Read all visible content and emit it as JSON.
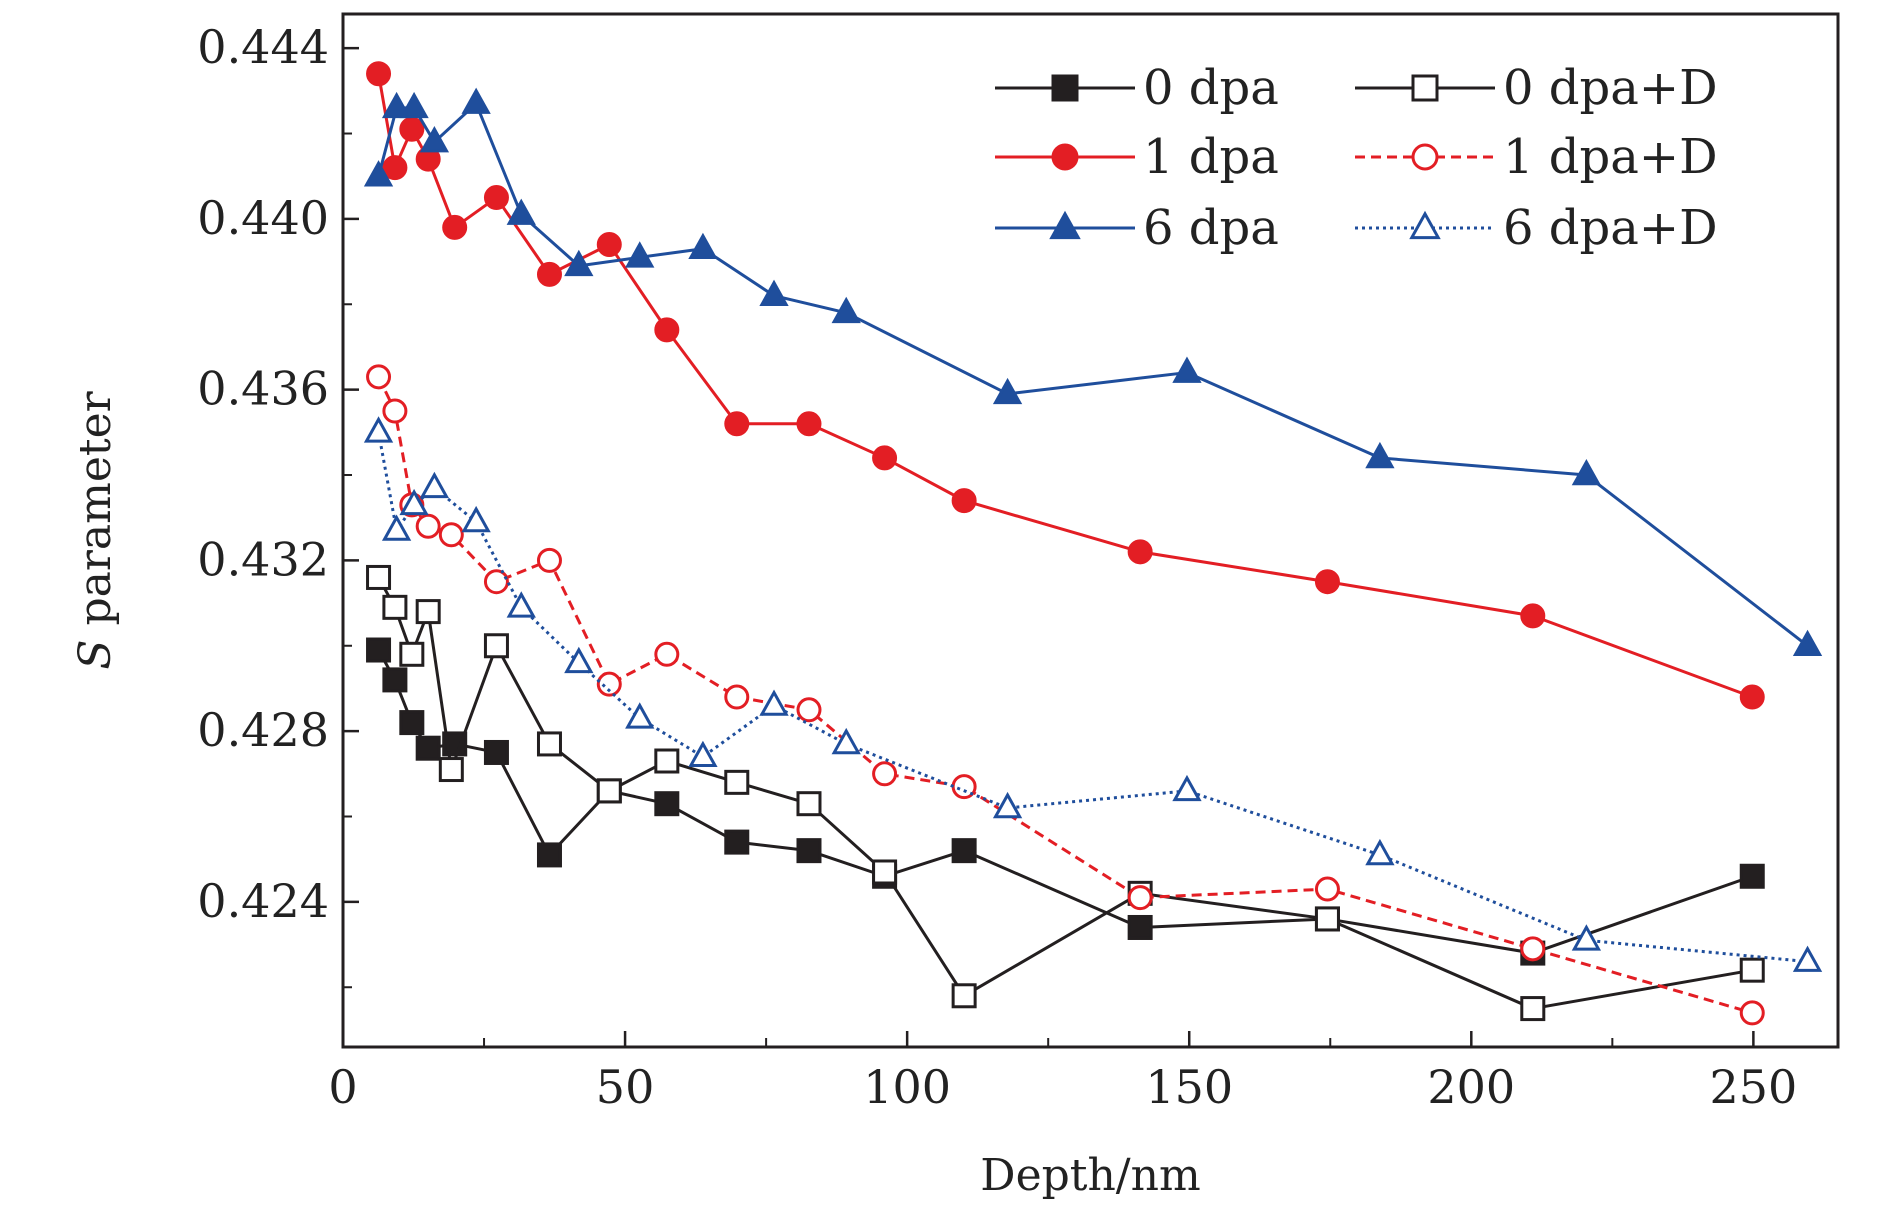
{
  "chart_data": {
    "type": "line",
    "title": "",
    "xlabel": "Depth/nm",
    "ylabel_italic": "S",
    "ylabel_rest": " parameter",
    "xlim": [
      0,
      265
    ],
    "ylim": [
      0.4206,
      0.4448
    ],
    "xticks": [
      0,
      50,
      100,
      150,
      200,
      250
    ],
    "xtick_labels": [
      "0",
      "50",
      "100",
      "150",
      "200",
      "250"
    ],
    "xminor": [
      25,
      75,
      125,
      175,
      225
    ],
    "yticks": [
      0.424,
      0.428,
      0.432,
      0.436,
      0.44,
      0.444
    ],
    "ytick_labels": [
      "0.424",
      "0.428",
      "0.432",
      "0.436",
      "0.440",
      "0.444"
    ],
    "yminor": [
      0.422,
      0.426,
      0.43,
      0.434,
      0.438,
      0.442
    ],
    "legend_position": "top-right",
    "series": [
      {
        "name": "0 dpa",
        "color": "#231f20",
        "marker": "square",
        "filled": true,
        "dash": "solid",
        "x": [
          6.3,
          9.2,
          12.2,
          15.1,
          19.8,
          27.2,
          36.6,
          47.2,
          57.4,
          69.8,
          82.6,
          96.0,
          110.1,
          141.3,
          174.5,
          210.9,
          249.8
        ],
        "y": [
          0.4299,
          0.4292,
          0.4282,
          0.4276,
          0.4277,
          0.4275,
          0.4251,
          0.4266,
          0.4263,
          0.4254,
          0.4252,
          0.4246,
          0.4252,
          0.4234,
          0.4236,
          0.4228,
          0.4246
        ]
      },
      {
        "name": "0 dpa+D",
        "color": "#231f20",
        "marker": "square",
        "filled": false,
        "dash": "solid",
        "x": [
          6.3,
          9.2,
          12.2,
          15.1,
          19.2,
          27.2,
          36.6,
          47.2,
          57.4,
          69.8,
          82.6,
          96.0,
          110.1,
          141.3,
          174.5,
          210.9,
          249.8
        ],
        "y": [
          0.4316,
          0.4309,
          0.4298,
          0.4308,
          0.4271,
          0.43,
          0.4277,
          0.4266,
          0.4273,
          0.4268,
          0.4263,
          0.4247,
          0.4218,
          0.4242,
          0.4236,
          0.4215,
          0.4224
        ]
      },
      {
        "name": "1 dpa",
        "color": "#e31e24",
        "marker": "circle",
        "filled": true,
        "dash": "solid",
        "x": [
          6.3,
          9.2,
          12.2,
          15.1,
          19.8,
          27.2,
          36.6,
          47.2,
          57.4,
          69.8,
          82.6,
          96.0,
          110.1,
          141.3,
          174.5,
          210.9,
          249.8
        ],
        "y": [
          0.4434,
          0.4412,
          0.4421,
          0.4414,
          0.4398,
          0.4405,
          0.4387,
          0.4394,
          0.4374,
          0.4352,
          0.4352,
          0.4344,
          0.4334,
          0.4322,
          0.4315,
          0.4307,
          0.4288
        ]
      },
      {
        "name": "1 dpa+D",
        "color": "#e31e24",
        "marker": "circle",
        "filled": false,
        "dash": "dashed",
        "x": [
          6.3,
          9.2,
          12.2,
          15.1,
          19.2,
          27.2,
          36.6,
          47.2,
          57.4,
          69.8,
          82.6,
          96.0,
          110.1,
          141.3,
          174.5,
          210.9,
          249.8
        ],
        "y": [
          0.4363,
          0.4355,
          0.4333,
          0.4328,
          0.4326,
          0.4315,
          0.432,
          0.4291,
          0.4298,
          0.4288,
          0.4285,
          0.427,
          0.4267,
          0.4241,
          0.4243,
          0.4229,
          0.4214
        ]
      },
      {
        "name": "6 dpa",
        "color": "#1f4e9c",
        "marker": "triangle",
        "filled": true,
        "dash": "solid",
        "x": [
          6.3,
          9.5,
          12.6,
          16.2,
          23.6,
          31.6,
          41.8,
          52.6,
          63.8,
          76.4,
          89.2,
          117.8,
          149.6,
          183.8,
          220.4,
          259.6
        ],
        "y": [
          0.441,
          0.4426,
          0.4426,
          0.4418,
          0.4427,
          0.4401,
          0.4389,
          0.4391,
          0.4393,
          0.4382,
          0.4378,
          0.4359,
          0.4364,
          0.4344,
          0.434,
          0.43
        ]
      },
      {
        "name": "6 dpa+D",
        "color": "#1f4e9c",
        "marker": "triangle",
        "filled": false,
        "dash": "dotted",
        "x": [
          6.3,
          9.5,
          12.6,
          16.2,
          23.6,
          31.6,
          41.8,
          52.6,
          63.8,
          76.4,
          89.2,
          117.8,
          149.6,
          183.8,
          220.4,
          259.6
        ],
        "y": [
          0.435,
          0.4327,
          0.4333,
          0.4337,
          0.4329,
          0.4309,
          0.4296,
          0.4283,
          0.4274,
          0.4286,
          0.4277,
          0.4262,
          0.4266,
          0.4251,
          0.4231,
          0.4226
        ]
      }
    ]
  }
}
